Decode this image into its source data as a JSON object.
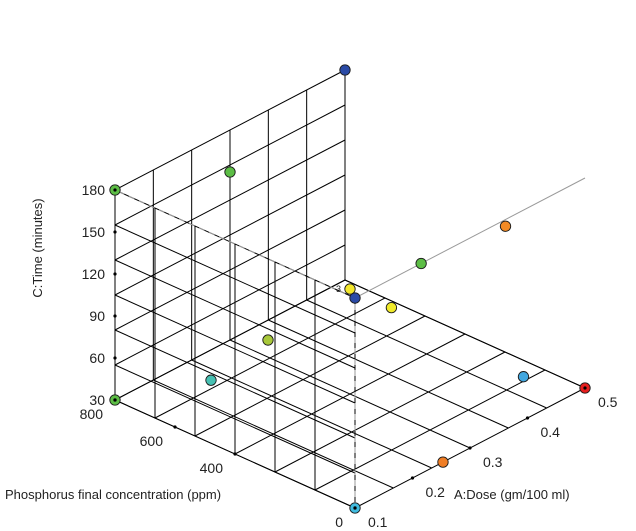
{
  "chart_data": {
    "type": "scatter3d",
    "axes": {
      "x": {
        "label": "A:Dose  (gm/100 ml)",
        "ticks": [
          0.1,
          0.2,
          0.3,
          0.4,
          0.5
        ],
        "tick_labels": [
          "0.1",
          "0.2",
          "0.3",
          "0.4",
          "0.5"
        ],
        "range": [
          0.1,
          0.5
        ]
      },
      "y": {
        "label": "Phosphorus final concentration (ppm)",
        "ticks": [
          0,
          400,
          600,
          800
        ],
        "tick_labels": [
          "0",
          "400",
          "600",
          "800"
        ],
        "range": [
          0,
          800
        ]
      },
      "z": {
        "label": "C:Time (minutes)",
        "ticks": [
          30,
          60,
          90,
          120,
          150,
          180
        ],
        "tick_labels": [
          "30",
          "60",
          "90",
          "120",
          "150",
          "180"
        ],
        "range": [
          30,
          180
        ]
      }
    },
    "grid": true,
    "points": [
      {
        "x": 0.1,
        "y": 0,
        "z": 30,
        "color": "#41bce0"
      },
      {
        "x": 0.5,
        "y": 0,
        "z": 30,
        "color": "#e61e1e"
      },
      {
        "x": 0.1,
        "y": 800,
        "z": 30,
        "color": "#5cbd45"
      },
      {
        "x": 0.1,
        "y": 800,
        "z": 180,
        "color": "#5cbd45"
      },
      {
        "x": 0.5,
        "y": 800,
        "z": 180,
        "color": "#2a4aa6"
      },
      {
        "x": 0.1,
        "y": 0,
        "z": 180,
        "color": "#2a4aa6"
      },
      {
        "x": 0.215,
        "y": 0,
        "z": 180,
        "color": "#5cbd45"
      },
      {
        "x": 0.253,
        "y": 0,
        "z": 30,
        "color": "#f07e25"
      },
      {
        "x": 0.1,
        "y": 480,
        "z": 75,
        "color": "#47c0b2"
      },
      {
        "x": 0.1,
        "y": 290,
        "z": 122,
        "color": "#a8c83a"
      },
      {
        "x": 0.393,
        "y": 0,
        "z": 61,
        "color": "#41a7e0"
      },
      {
        "x": 0.5,
        "y": 265,
        "z": 120,
        "color": "#f28a24"
      },
      {
        "x": 0.3,
        "y": 400,
        "z": 105,
        "color": "#f3e72c"
      },
      {
        "x": 0.3,
        "y": 262,
        "z": 105,
        "color": "#f0ea2a"
      },
      {
        "x": 0.3,
        "y": 800,
        "z": 150,
        "color": "#5cbd45"
      }
    ],
    "annotations": [
      {
        "text": "3",
        "x": 0.3,
        "y": 400,
        "z": 105
      }
    ]
  }
}
